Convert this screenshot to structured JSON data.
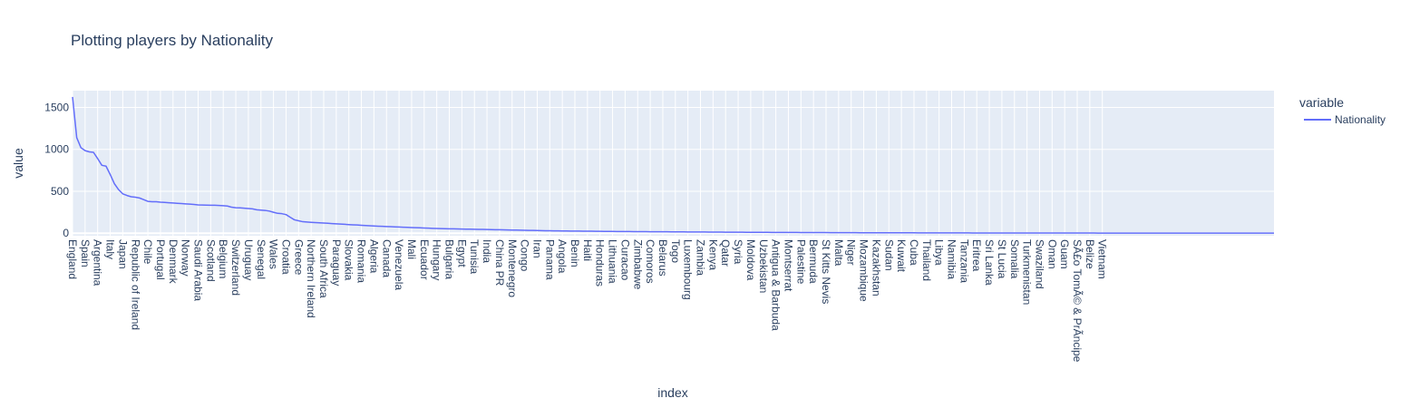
{
  "chart_data": {
    "type": "line",
    "title": "Plotting players by Nationality",
    "xlabel": "index",
    "ylabel": "value",
    "ylim": [
      -30,
      1700
    ],
    "yticks": [
      0,
      500,
      1000,
      1500
    ],
    "grid": true,
    "legend": {
      "title": "variable",
      "placement": "right"
    },
    "colors": {
      "series": "#636efa",
      "plot_bg": "#e5ecf6",
      "grid": "#ffffff",
      "text": "#2a3f5f"
    },
    "x_tick_labels": [
      "England",
      "Spain",
      "Argentina",
      "Italy",
      "Japan",
      "Republic of Ireland",
      "Chile",
      "Portugal",
      "Denmark",
      "Norway",
      "Saudi Arabia",
      "Scotland",
      "Belgium",
      "Switzerland",
      "Uruguay",
      "Senegal",
      "Wales",
      "Croatia",
      "Greece",
      "Northern Ireland",
      "South Africa",
      "Paraguay",
      "Slovakia",
      "Romania",
      "Algeria",
      "Canada",
      "Venezuela",
      "Mali",
      "Ecuador",
      "Hungary",
      "Bulgaria",
      "Egypt",
      "Tunisia",
      "India",
      "China PR",
      "Montenegro",
      "Congo",
      "Iran",
      "Panama",
      "Angola",
      "Benin",
      "Haiti",
      "Honduras",
      "Lithuania",
      "Curacao",
      "Zimbabwe",
      "Comoros",
      "Belarus",
      "Togo",
      "Luxembourg",
      "Zambia",
      "Kenya",
      "Qatar",
      "Syria",
      "Moldova",
      "Uzbekistan",
      "Antigua & Barbuda",
      "Montserrat",
      "Palestine",
      "Bermuda",
      "St Kitts Nevis",
      "Malta",
      "Niger",
      "Mozambique",
      "Kazakhstan",
      "Sudan",
      "Kuwait",
      "Cuba",
      "Thailand",
      "Libya",
      "Namibia",
      "Tanzania",
      "Eritrea",
      "Sri Lanka",
      "St Lucia",
      "Somalia",
      "Turkmenistan",
      "Swaziland",
      "Oman",
      "Guam",
      "SÃ£o TomÃ© & PrÃncipe",
      "Belize",
      "Vietnam"
    ],
    "series": [
      {
        "name": "Nationality",
        "values": [
          1625,
          1140,
          1020,
          985,
          970,
          965,
          890,
          810,
          800,
          700,
          590,
          520,
          470,
          450,
          435,
          430,
          420,
          400,
          380,
          375,
          375,
          370,
          367,
          363,
          360,
          357,
          354,
          350,
          347,
          343,
          338,
          336,
          335,
          334,
          333,
          331,
          328,
          324,
          310,
          304,
          302,
          298,
          294,
          290,
          280,
          276,
          272,
          264,
          250,
          237,
          233,
          222,
          190,
          160,
          148,
          137,
          133,
          130,
          127,
          124,
          121,
          118,
          115,
          112,
          109,
          106,
          103,
          100,
          98,
          95,
          92,
          89,
          86,
          84,
          82,
          80,
          78,
          76,
          74,
          72,
          70,
          68,
          66,
          64,
          62,
          60,
          58,
          56,
          55,
          54,
          53,
          52,
          51,
          50,
          49,
          48,
          47,
          46,
          45,
          44,
          43,
          42,
          41,
          40,
          39,
          38,
          37,
          36,
          35,
          34,
          33,
          32,
          31,
          30,
          29,
          28,
          27.5,
          27,
          26.5,
          26,
          25.5,
          25,
          24.5,
          24,
          23.5,
          23,
          22.5,
          22,
          21.5,
          21,
          20.5,
          20,
          19.7,
          19.4,
          19.1,
          18.8,
          18.5,
          18.2,
          17.9,
          17.6,
          17.3,
          17,
          16.7,
          16.4,
          16.1,
          15.8,
          15.5,
          15.2,
          14.9,
          14.6,
          14.3,
          14,
          13.7,
          13.4,
          13.1,
          12.8,
          12.5,
          12.2,
          11.9,
          11.6,
          11.3,
          11,
          10.8,
          10.6,
          10.4,
          10.2,
          10,
          9.8,
          9.6,
          9.4,
          9.2,
          9,
          8.8,
          8.6,
          8.4,
          8.2,
          8,
          7.8,
          7.6,
          7.4,
          7.2,
          7,
          6.8,
          6.6,
          6.4,
          6.2,
          6,
          5.9,
          5.8,
          5.7,
          5.6,
          5.5,
          5.4,
          5.3,
          5.2,
          5.1,
          5,
          4.9,
          4.8,
          4.7,
          4.6,
          4.5,
          4.4,
          4.3,
          4.2,
          4.1,
          4,
          3.9,
          3.8,
          3.7,
          3.6,
          3.5,
          3.4,
          3.3,
          3.2,
          3.1,
          3,
          2.95,
          2.9,
          2.85,
          2.8,
          2.75,
          2.7,
          2.65,
          2.6,
          2.55,
          2.5,
          2.45,
          2.4,
          2.35,
          2.3,
          2.25,
          2.2,
          2.15,
          2.1,
          2.05,
          2,
          1.97,
          1.94,
          1.91,
          1.88,
          1.85,
          1.82,
          1.79,
          1.76,
          1.73,
          1.7,
          1.67,
          1.64,
          1.61,
          1.58,
          1.55,
          1.52,
          1.49,
          1.46,
          1.43,
          1.4,
          1.37,
          1.34,
          1.31,
          1.28,
          1.25,
          1.22,
          1.19,
          1.16,
          1.13,
          1.1,
          1.08,
          1.06,
          1.04,
          1.02,
          1,
          1,
          1,
          1,
          1,
          1,
          1,
          1,
          1,
          1,
          1,
          1,
          1,
          1,
          1,
          1,
          1
        ]
      }
    ]
  }
}
